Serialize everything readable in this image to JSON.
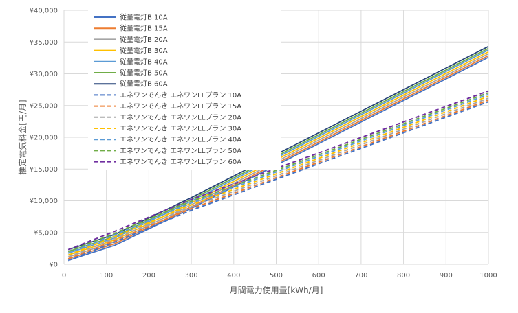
{
  "chart_data": {
    "type": "line",
    "title": "",
    "xlabel": "月間電力使用量[kWh/月]",
    "ylabel": "推定電気料金[円/月]",
    "xlim": [
      0,
      1000
    ],
    "ylim": [
      0,
      40000
    ],
    "x_ticks": [
      "0",
      "100",
      "200",
      "300",
      "400",
      "500",
      "600",
      "700",
      "800",
      "900",
      "1000"
    ],
    "y_ticks": [
      "¥0",
      "¥5,000",
      "¥10,000",
      "¥15,000",
      "¥20,000",
      "¥25,000",
      "¥30,000",
      "¥35,000",
      "¥40,000"
    ],
    "grid": true,
    "legend_position": "top-left",
    "x": [
      10,
      120,
      300,
      1000
    ],
    "series": [
      {
        "name": "従量電灯B 10A",
        "color": "#4472C4",
        "dash": "solid",
        "values": [
          600,
          3000,
          8800,
          32600
        ]
      },
      {
        "name": "従量電灯B 15A",
        "color": "#ED7D31",
        "dash": "solid",
        "values": [
          850,
          3250,
          9050,
          32850
        ]
      },
      {
        "name": "従量電灯B 20A",
        "color": "#A5A5A5",
        "dash": "solid",
        "values": [
          1150,
          3550,
          9350,
          33150
        ]
      },
      {
        "name": "従量電灯B 30A",
        "color": "#FFC000",
        "dash": "solid",
        "values": [
          1450,
          3850,
          9650,
          33450
        ]
      },
      {
        "name": "従量電灯B 40A",
        "color": "#5B9BD5",
        "dash": "solid",
        "values": [
          1750,
          4150,
          9950,
          33750
        ]
      },
      {
        "name": "従量電灯B 50A",
        "color": "#70AD47",
        "dash": "solid",
        "values": [
          2000,
          4400,
          10200,
          34000
        ]
      },
      {
        "name": "従量電灯B 60A",
        "color": "#264478",
        "dash": "solid",
        "values": [
          2300,
          4700,
          10500,
          34300
        ]
      },
      {
        "name": "エネワンでんき エネワンLLプラン 10A",
        "color": "#4472C4",
        "dash": "dashed",
        "values": [
          600,
          3500,
          8500,
          25600
        ]
      },
      {
        "name": "エネワンでんき エネワンLLプラン 15A",
        "color": "#ED7D31",
        "dash": "dashed",
        "values": [
          850,
          3750,
          8750,
          25850
        ]
      },
      {
        "name": "エネワンでんき エネワンLLプラン 20A",
        "color": "#A5A5A5",
        "dash": "dashed",
        "values": [
          1150,
          4050,
          9050,
          26150
        ]
      },
      {
        "name": "エネワンでんき エネワンLLプラン 30A",
        "color": "#FFC000",
        "dash": "dashed",
        "values": [
          1450,
          4350,
          9350,
          26450
        ]
      },
      {
        "name": "エネワンでんき エネワンLLプラン 40A",
        "color": "#5B9BD5",
        "dash": "dashed",
        "values": [
          1750,
          4650,
          9650,
          26750
        ]
      },
      {
        "name": "エネワンでんき エネワンLLプラン 50A",
        "color": "#70AD47",
        "dash": "dashed",
        "values": [
          2000,
          4900,
          9900,
          27000
        ]
      },
      {
        "name": "エネワンでんき エネワンLLプラン 60A",
        "color": "#7030A0",
        "dash": "dashed",
        "values": [
          2300,
          5200,
          10200,
          27300
        ]
      }
    ]
  }
}
